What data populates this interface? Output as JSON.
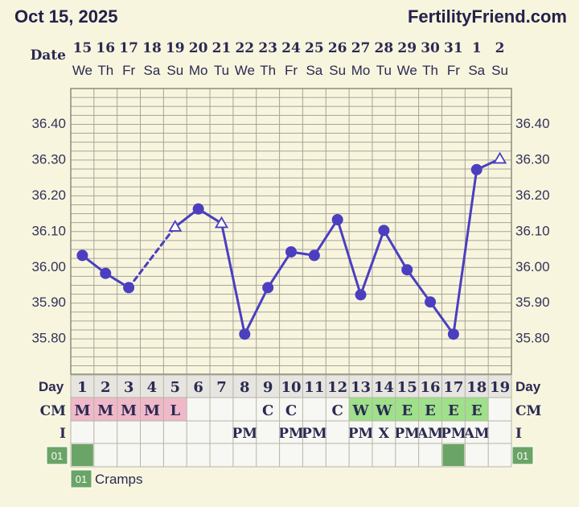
{
  "header": {
    "date": "Oct 15, 2025",
    "site": "FertilityFriend.com"
  },
  "labels": {
    "date": "Date",
    "day": "Day",
    "cm": "CM",
    "intercourse": "I",
    "symptom_tag": "01",
    "legend_text": "Cramps"
  },
  "chart_data": {
    "type": "line",
    "title": "",
    "xlabel": "",
    "ylabel": "",
    "ylim": [
      35.72,
      36.49
    ],
    "y_ticks": [
      "36.40",
      "36.30",
      "36.20",
      "36.10",
      "36.00",
      "35.90",
      "35.80"
    ],
    "dates": [
      "15",
      "16",
      "17",
      "18",
      "19",
      "20",
      "21",
      "22",
      "23",
      "24",
      "25",
      "26",
      "27",
      "28",
      "29",
      "30",
      "31",
      "1",
      "2"
    ],
    "weekdays": [
      "We",
      "Th",
      "Fr",
      "Sa",
      "Su",
      "Mo",
      "Tu",
      "We",
      "Th",
      "Fr",
      "Sa",
      "Su",
      "Mo",
      "Tu",
      "We",
      "Th",
      "Fr",
      "Sa",
      "Su"
    ],
    "cycle_days": [
      "1",
      "2",
      "3",
      "4",
      "5",
      "6",
      "7",
      "8",
      "9",
      "10",
      "11",
      "12",
      "13",
      "14",
      "15",
      "16",
      "17",
      "18",
      "19"
    ],
    "temperatures": [
      36.03,
      35.98,
      35.94,
      null,
      36.11,
      36.16,
      36.12,
      35.81,
      35.94,
      36.04,
      36.03,
      36.13,
      35.92,
      36.1,
      35.99,
      35.9,
      35.81,
      36.27,
      36.3
    ],
    "point_types": [
      "dot",
      "dot",
      "dot",
      "none",
      "open",
      "dot",
      "open",
      "dot",
      "dot",
      "dot",
      "dot",
      "dot",
      "dot",
      "dot",
      "dot",
      "dot",
      "dot",
      "dot",
      "open"
    ],
    "dashed_segments": [
      [
        2,
        4
      ]
    ],
    "cervical_mucus": [
      "M",
      "M",
      "M",
      "M",
      "L",
      "",
      "",
      "",
      "C",
      "C",
      "",
      "C",
      "W",
      "W",
      "E",
      "E",
      "E",
      "E",
      ""
    ],
    "intercourse": [
      "",
      "",
      "",
      "",
      "",
      "",
      "",
      "PM",
      "",
      "PM",
      "PM",
      "",
      "PM",
      "X",
      "PM",
      "AM",
      "PM",
      "AM",
      ""
    ],
    "symptoms": [
      true,
      false,
      false,
      false,
      false,
      false,
      false,
      false,
      false,
      false,
      false,
      false,
      false,
      false,
      false,
      false,
      true,
      false,
      false
    ],
    "colors": {
      "line": "#4b3fc0",
      "menses": "#f0b9c9",
      "fertile_cm": "#9fe08a",
      "symptom": "#6aa466",
      "grid": "#a7a496"
    }
  }
}
